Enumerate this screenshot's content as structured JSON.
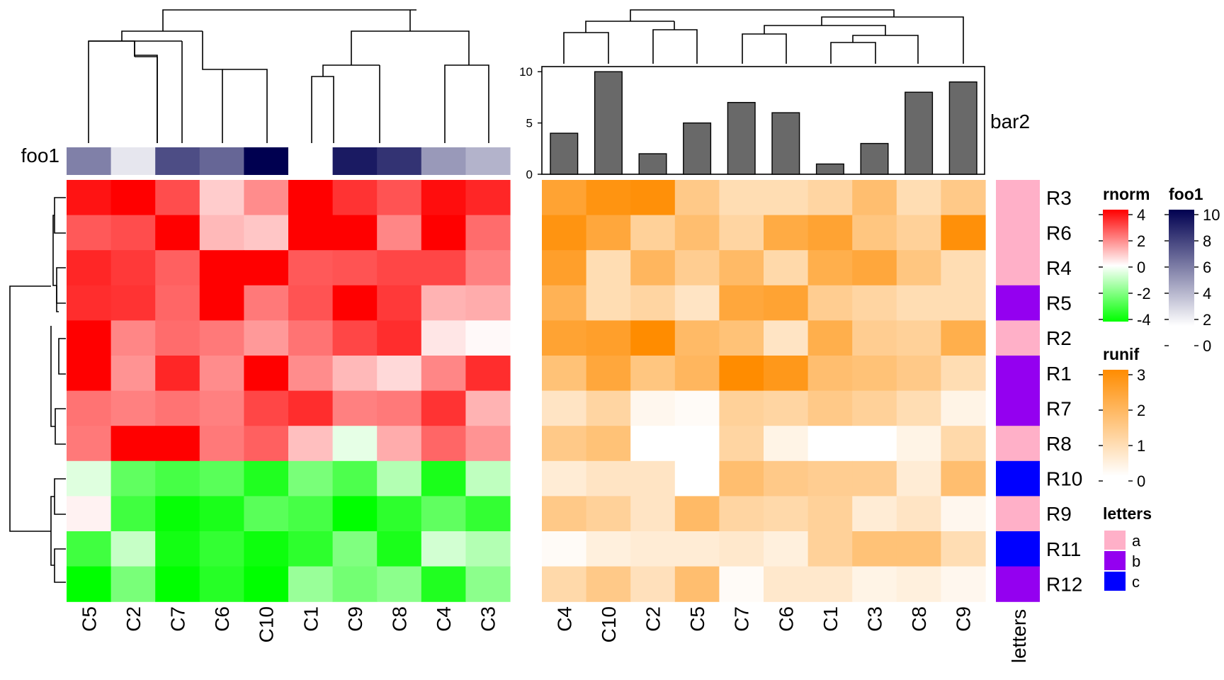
{
  "chart_data": [
    {
      "type": "heatmap",
      "name": "rnorm",
      "columns": [
        "C5",
        "C2",
        "C7",
        "C6",
        "C10",
        "C1",
        "C9",
        "C8",
        "C4",
        "C3"
      ],
      "rows": [
        "R3",
        "R6",
        "R4",
        "R5",
        "R2",
        "R1",
        "R7",
        "R8",
        "R10",
        "R9",
        "R11",
        "R12"
      ],
      "values": [
        [
          3.7,
          4.0,
          2.8,
          0.8,
          1.8,
          4.1,
          3.2,
          2.7,
          3.8,
          3.4
        ],
        [
          2.6,
          2.8,
          4.0,
          1.1,
          0.9,
          4.2,
          4.1,
          1.9,
          4.2,
          2.3
        ],
        [
          3.4,
          3.1,
          2.5,
          4.2,
          4.2,
          2.6,
          2.7,
          2.9,
          2.9,
          2.0
        ],
        [
          3.3,
          3.2,
          2.4,
          4.2,
          2.1,
          2.7,
          4.0,
          3.1,
          1.2,
          1.3
        ],
        [
          4.0,
          1.9,
          2.3,
          2.1,
          1.6,
          2.2,
          2.9,
          3.3,
          0.4,
          0.1
        ],
        [
          4.0,
          1.7,
          3.4,
          1.8,
          4.0,
          1.8,
          1.1,
          0.6,
          1.9,
          3.3
        ],
        [
          2.2,
          2.0,
          2.2,
          2.0,
          2.9,
          3.3,
          2.0,
          2.1,
          3.2,
          1.2
        ],
        [
          2.1,
          4.2,
          4.2,
          2.1,
          2.5,
          1.0,
          -0.4,
          1.3,
          2.4,
          1.7
        ],
        [
          -0.5,
          -2.5,
          -2.9,
          -2.6,
          -3.5,
          -2.1,
          -2.8,
          -1.2,
          -3.6,
          -1.0
        ],
        [
          0.2,
          -3.0,
          -3.9,
          -3.6,
          -2.6,
          -2.9,
          -4.0,
          -3.3,
          -2.5,
          -3.2
        ],
        [
          -3.0,
          -0.9,
          -3.7,
          -3.2,
          -3.8,
          -3.3,
          -2.0,
          -3.6,
          -0.7,
          -1.2
        ],
        [
          -4.0,
          -2.1,
          -4.1,
          -3.4,
          -4.2,
          -1.6,
          -2.2,
          -1.8,
          -3.5,
          -1.8
        ]
      ],
      "legend": {
        "title": "rnorm",
        "ticks": [
          4,
          2,
          0,
          -2,
          -4
        ]
      }
    },
    {
      "type": "heatmap",
      "name": "runif",
      "columns": [
        "C4",
        "C10",
        "C2",
        "C5",
        "C7",
        "C6",
        "C1",
        "C3",
        "C8",
        "C9"
      ],
      "rows": [
        "R3",
        "R6",
        "R4",
        "R5",
        "R2",
        "R1",
        "R7",
        "R8",
        "R10",
        "R9",
        "R11",
        "R12"
      ],
      "values": [
        [
          2.4,
          2.8,
          2.9,
          1.4,
          0.9,
          0.9,
          1.1,
          1.7,
          0.9,
          1.4
        ],
        [
          2.8,
          2.3,
          1.2,
          1.7,
          1.1,
          2.2,
          2.4,
          1.5,
          1.2,
          2.9
        ],
        [
          2.5,
          0.9,
          1.9,
          1.3,
          1.8,
          1.0,
          2.1,
          2.3,
          1.5,
          0.9
        ],
        [
          2.0,
          0.9,
          1.1,
          0.7,
          2.3,
          2.4,
          1.3,
          1.1,
          0.9,
          0.9
        ],
        [
          2.4,
          2.5,
          3.0,
          1.8,
          1.6,
          0.7,
          2.1,
          1.3,
          1.2,
          2.1
        ],
        [
          1.6,
          2.3,
          1.5,
          1.9,
          3.0,
          2.7,
          1.7,
          1.6,
          1.4,
          0.9
        ],
        [
          0.7,
          1.1,
          0.2,
          0.1,
          1.2,
          1.1,
          1.4,
          1.2,
          0.9,
          0.3
        ],
        [
          1.4,
          1.6,
          0.0,
          0.0,
          1.1,
          0.3,
          0.0,
          0.0,
          0.3,
          1.0
        ],
        [
          0.5,
          0.7,
          0.7,
          0.0,
          1.7,
          1.4,
          1.3,
          1.3,
          0.5,
          1.7
        ],
        [
          1.4,
          1.2,
          0.7,
          1.8,
          1.1,
          1.0,
          1.2,
          0.5,
          0.7,
          0.2
        ],
        [
          0.1,
          0.4,
          0.5,
          0.5,
          0.6,
          0.4,
          1.2,
          1.6,
          1.6,
          0.9
        ],
        [
          1.0,
          1.4,
          0.8,
          1.7,
          0.1,
          0.6,
          0.6,
          0.3,
          0.4,
          0.2
        ]
      ],
      "legend": {
        "title": "runif",
        "ticks": [
          3,
          2,
          1,
          0
        ]
      }
    },
    {
      "type": "heatmap",
      "name": "foo1",
      "label": "foo1",
      "columns": [
        "C5",
        "C2",
        "C7",
        "C6",
        "C10",
        "C1",
        "C9",
        "C8",
        "C4",
        "C3"
      ],
      "values": [
        5,
        1,
        7,
        6,
        10,
        0,
        9,
        8,
        4,
        3
      ],
      "legend": {
        "title": "foo1",
        "ticks": [
          10,
          8,
          6,
          4,
          2,
          0
        ]
      }
    },
    {
      "type": "bar",
      "name": "bar2",
      "label": "bar2",
      "categories": [
        "C4",
        "C10",
        "C2",
        "C5",
        "C7",
        "C6",
        "C1",
        "C3",
        "C8",
        "C9"
      ],
      "values": [
        4,
        10,
        2,
        5,
        7,
        6,
        1,
        3,
        8,
        9
      ],
      "yticks": [
        10,
        5,
        0
      ],
      "ylim": [
        0,
        10.5
      ]
    },
    {
      "type": "heatmap",
      "name": "letters",
      "label": "letters",
      "rows": [
        "R3",
        "R6",
        "R4",
        "R5",
        "R2",
        "R1",
        "R7",
        "R8",
        "R10",
        "R9",
        "R11",
        "R12"
      ],
      "values": [
        "a",
        "a",
        "a",
        "b",
        "a",
        "b",
        "b",
        "a",
        "c",
        "a",
        "c",
        "b"
      ],
      "legend": {
        "title": "letters",
        "items": [
          "a",
          "b",
          "c"
        ]
      },
      "colors": {
        "a": "#ffb0c8",
        "b": "#9400f0",
        "c": "#0000ff"
      }
    }
  ],
  "colors": {
    "rnorm_high": "#ff0000",
    "rnorm_mid": "#ffffff",
    "rnorm_low": "#00ff00",
    "runif_high": "#ff8c00",
    "foo1_high": "#000050",
    "bar_fill": "#696969"
  },
  "dendrograms": {
    "column_left": "shown above heatmap 1",
    "column_right": "shown above heatmap 2",
    "row": "shown left of heatmap 1"
  }
}
